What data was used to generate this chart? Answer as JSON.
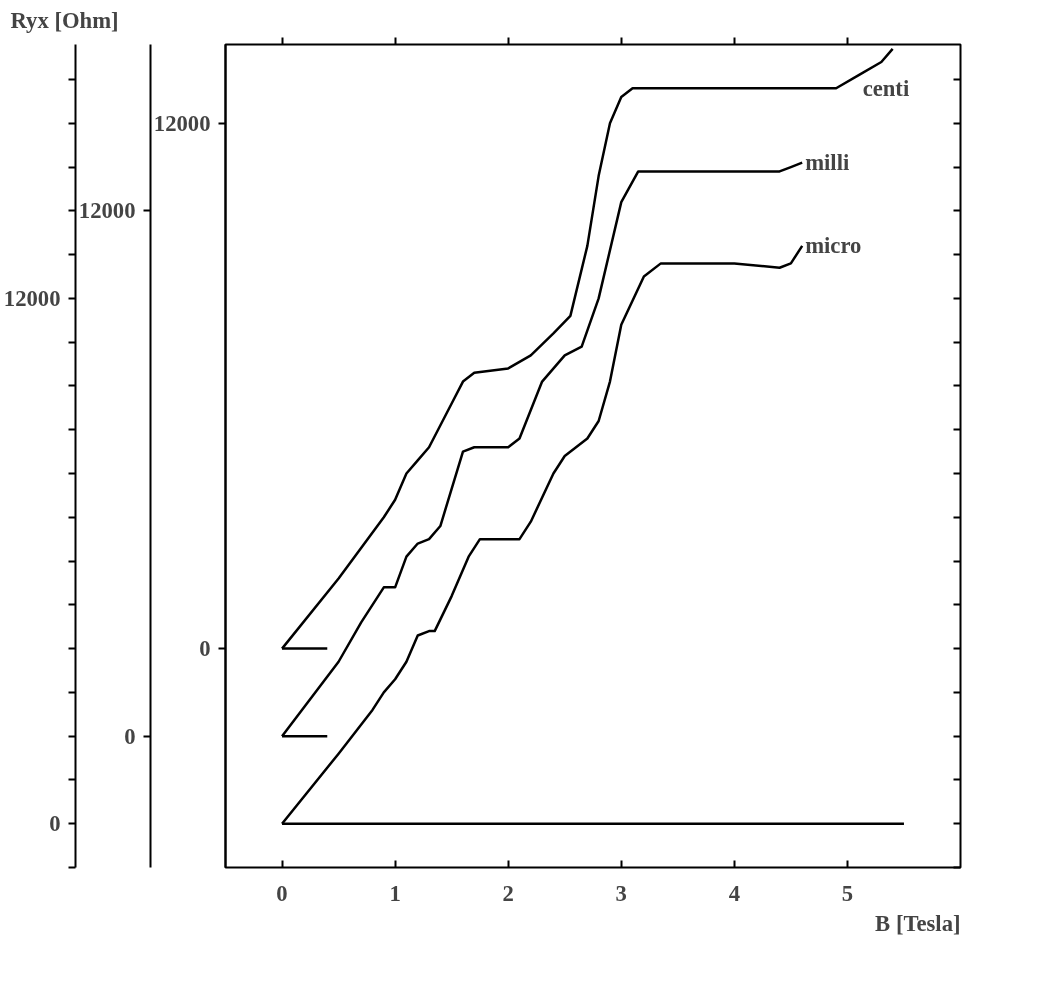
{
  "chart_data": {
    "type": "line",
    "xlabel": "B [Tesla]",
    "ylabel": "Ryx [Ohm]",
    "xlim": [
      -0.5,
      6.0
    ],
    "ylim": [
      -1000,
      17800
    ],
    "xticks": [
      0,
      1,
      2,
      3,
      4,
      5
    ],
    "yticks": [
      {
        "value": -1000,
        "label": null
      },
      0,
      {
        "value": 1000,
        "label": null
      },
      {
        "value": 2000,
        "label": null
      },
      {
        "value": 3000,
        "label": null
      },
      {
        "value": 4000,
        "label": null
      },
      {
        "value": 5000,
        "label": null
      },
      {
        "value": 6000,
        "label": null
      },
      {
        "value": 7000,
        "label": null
      },
      {
        "value": 8000,
        "label": null
      },
      {
        "value": 9000,
        "label": null
      },
      {
        "value": 10000,
        "label": null
      },
      {
        "value": 11000,
        "label": null
      },
      12000,
      {
        "value": 13000,
        "label": null
      },
      {
        "value": 14000,
        "label": null
      },
      {
        "value": 15000,
        "label": null
      },
      {
        "value": 16000,
        "label": null
      },
      {
        "value": 17000,
        "label": null
      }
    ],
    "y2lim": [
      -3000,
      15800
    ],
    "y2ticks": [
      0,
      12000
    ],
    "y3lim": [
      -5000,
      13800
    ],
    "y3ticks": [
      0,
      12000
    ],
    "grid": false,
    "legend": "right",
    "marker": "none",
    "line_style": "solid",
    "series": [
      {
        "name": "centi",
        "color": "#000000",
        "axis": "y3",
        "x": [
          0,
          0.5,
          0.9,
          1.0,
          1.1,
          1.2,
          1.3,
          1.5,
          1.6,
          1.7,
          2.0,
          2.2,
          2.4,
          2.55,
          2.7,
          2.8,
          2.9,
          3.0,
          3.1,
          3.3,
          4.0,
          4.9,
          5.1,
          5.3,
          5.4
        ],
        "values": [
          0,
          1600,
          3000,
          3400,
          4000,
          4300,
          4600,
          5600,
          6100,
          6300,
          6400,
          6700,
          7200,
          7600,
          9200,
          10800,
          12000,
          12600,
          12800,
          12800,
          12800,
          12800,
          13100,
          13400,
          13700
        ]
      },
      {
        "name": "milli",
        "color": "#000000",
        "axis": "y2",
        "x": [
          0,
          0.5,
          0.7,
          0.9,
          1.0,
          1.1,
          1.2,
          1.3,
          1.4,
          1.6,
          1.7,
          2.0,
          2.1,
          2.3,
          2.5,
          2.65,
          2.8,
          3.0,
          3.15,
          3.3,
          4.0,
          4.4,
          4.5,
          4.6
        ],
        "values": [
          0,
          1700,
          2600,
          3400,
          3400,
          4100,
          4400,
          4500,
          4800,
          6500,
          6600,
          6600,
          6800,
          8100,
          8700,
          8900,
          10000,
          12200,
          12900,
          12900,
          12900,
          12900,
          13000,
          13100
        ]
      },
      {
        "name": "micro",
        "color": "#000000",
        "x": [
          0,
          0.5,
          0.8,
          0.9,
          1.0,
          1.1,
          1.2,
          1.3,
          1.35,
          1.5,
          1.65,
          1.75,
          2.0,
          2.1,
          2.2,
          2.4,
          2.5,
          2.7,
          2.8,
          2.9,
          3.0,
          3.2,
          3.35,
          4.0,
          4.4,
          4.5,
          4.6
        ],
        "values": [
          0,
          1600,
          2600,
          3000,
          3300,
          3700,
          4300,
          4400,
          4400,
          5200,
          6100,
          6500,
          6500,
          6500,
          6900,
          8000,
          8400,
          8800,
          9200,
          10100,
          11400,
          12500,
          12800,
          12800,
          12700,
          12800,
          13200
        ]
      },
      {
        "color": "#000000",
        "axis": "y3",
        "x": [
          0,
          0.4
        ],
        "values": [
          0,
          0
        ]
      },
      {
        "color": "#000000",
        "axis": "y2",
        "x": [
          0,
          0.4
        ],
        "values": [
          0,
          0
        ]
      },
      {
        "color": "#000000",
        "x": [
          0,
          5.5
        ],
        "values": [
          0,
          0
        ]
      }
    ]
  }
}
